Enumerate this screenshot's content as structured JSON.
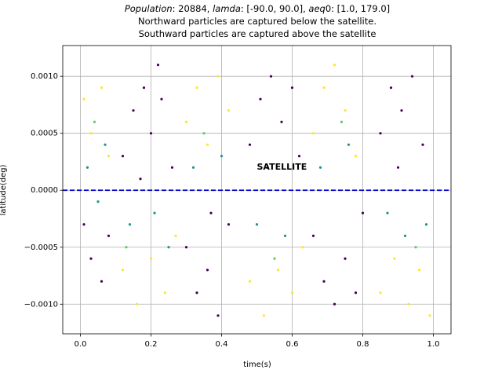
{
  "chart_data": {
    "type": "scatter",
    "title_lines": [
      [
        {
          "text": "Population",
          "italic": true
        },
        {
          "text": ": 20884, "
        },
        {
          "text": "lamda",
          "italic": true
        },
        {
          "text": ": [-90.0, 90.0], "
        },
        {
          "text": "aeq",
          "italic": true
        },
        {
          "text": "0: [1.0, 179.0]"
        }
      ],
      [
        {
          "text": "Northward particles are captured below the satellite."
        }
      ],
      [
        {
          "text": "Southward particles are captured above the satellite"
        }
      ]
    ],
    "xlabel": "time(s)",
    "ylabel": "latitude(deg)",
    "xlim": [
      -0.05,
      1.05
    ],
    "ylim": [
      -0.00126,
      0.00127
    ],
    "xticks": [
      {
        "value": 0,
        "label": "0.0"
      },
      0.2,
      0.4,
      0.6,
      0.8,
      {
        "value": 1,
        "label": "1.0"
      }
    ],
    "yticks": [
      {
        "value": -0.001,
        "label": "−0.0010"
      },
      {
        "value": -0.0005,
        "label": "−0.0005"
      },
      {
        "value": 0,
        "label": "0.0000"
      },
      {
        "value": 0.0005,
        "label": "0.0005"
      },
      {
        "value": 0.001,
        "label": "0.0010"
      }
    ],
    "grid": true,
    "hline": {
      "y": 0,
      "color": "#0000cc",
      "style": "dashed"
    },
    "annotation": {
      "text": "SATELLITE",
      "x": 0.5,
      "y": 0.0002,
      "color": "#0000ff"
    },
    "series": [
      {
        "color": "#440154",
        "x": [
          0.12,
          0.15,
          0.18,
          0.2,
          0.23,
          0.26,
          0.17,
          0.22,
          0.48,
          0.51,
          0.54,
          0.57,
          0.6,
          0.62,
          0.53,
          0.85,
          0.88,
          0.91,
          0.94,
          0.97,
          0.9,
          0.01,
          0.03,
          0.06,
          0.08,
          0.3,
          0.33,
          0.36,
          0.39,
          0.42,
          0.37,
          0.66,
          0.69,
          0.72,
          0.75,
          0.78,
          0.8
        ],
        "values": [
          0.0003,
          0.0007,
          0.0009,
          0.0005,
          0.0008,
          0.0002,
          0.0001,
          0.0011,
          0.0004,
          0.0008,
          0.001,
          0.0006,
          0.0009,
          0.0003,
          0.0002,
          0.0005,
          0.0009,
          0.0007,
          0.001,
          0.0004,
          0.0002,
          -0.0003,
          -0.0006,
          -0.0008,
          -0.0004,
          -0.0005,
          -0.0009,
          -0.0007,
          -0.0011,
          -0.0003,
          -0.0002,
          -0.0004,
          -0.0008,
          -0.001,
          -0.0006,
          -0.0009,
          -0.0002
        ]
      },
      {
        "color": "#fde725",
        "x": [
          0.01,
          0.03,
          0.06,
          0.08,
          0.3,
          0.33,
          0.36,
          0.39,
          0.42,
          0.66,
          0.69,
          0.72,
          0.75,
          0.78,
          0.12,
          0.16,
          0.2,
          0.24,
          0.27,
          0.48,
          0.52,
          0.56,
          0.6,
          0.63,
          0.85,
          0.89,
          0.93,
          0.96,
          0.99
        ],
        "values": [
          0.0008,
          0.0005,
          0.0009,
          0.0003,
          0.0006,
          0.0009,
          0.0004,
          0.001,
          0.0007,
          0.0005,
          0.0009,
          0.0011,
          0.0007,
          0.0003,
          -0.0007,
          -0.001,
          -0.0006,
          -0.0009,
          -0.0004,
          -0.0008,
          -0.0011,
          -0.0007,
          -0.0009,
          -0.0005,
          -0.0009,
          -0.0006,
          -0.001,
          -0.0007,
          -0.0011
        ]
      },
      {
        "color": "#21918c",
        "x": [
          0.02,
          0.05,
          0.07,
          0.14,
          0.21,
          0.25,
          0.32,
          0.4,
          0.5,
          0.58,
          0.68,
          0.76,
          0.87,
          0.92,
          0.98
        ],
        "values": [
          0.0002,
          -0.0001,
          0.0004,
          -0.0003,
          -0.0002,
          -0.0005,
          0.0002,
          0.0003,
          -0.0003,
          -0.0004,
          0.0002,
          0.0004,
          -0.0002,
          -0.0004,
          -0.0003
        ]
      },
      {
        "color": "#5ec962",
        "x": [
          0.04,
          0.13,
          0.35,
          0.55,
          0.74,
          0.95
        ],
        "values": [
          0.0006,
          -0.0005,
          0.0005,
          -0.0006,
          0.0006,
          -0.0005
        ]
      }
    ]
  }
}
